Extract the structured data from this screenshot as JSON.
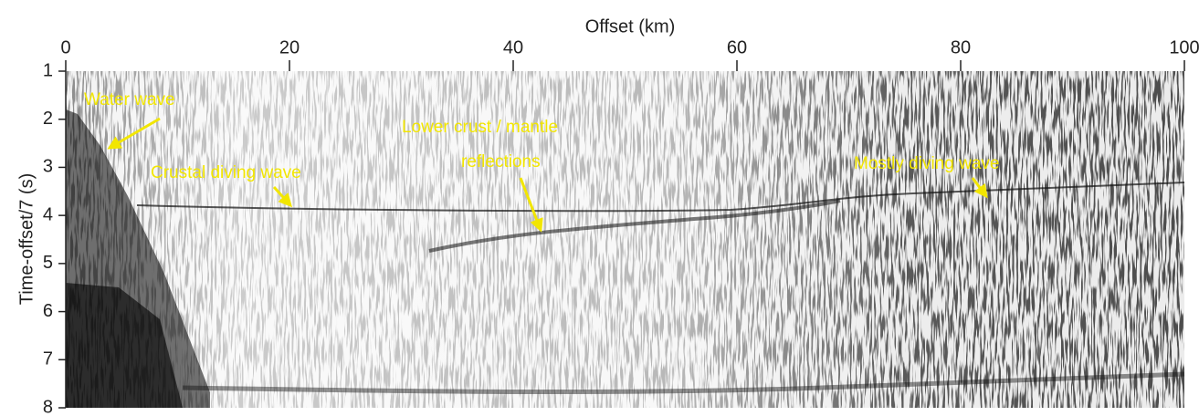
{
  "chart_data": {
    "type": "seismic-section",
    "xlabel": "Offset (km)",
    "ylabel": "Time-offset/7 (s)",
    "xlim": [
      0,
      100
    ],
    "xticks": [
      0,
      20,
      40,
      60,
      80,
      100
    ],
    "ylim": [
      8,
      1
    ],
    "yticks": [
      1,
      2,
      3,
      4,
      5,
      6,
      7,
      8
    ],
    "annotations": [
      "Water wave",
      "Crustal diving wave",
      "Lower crust / mantle",
      "reflections",
      "Mostly diving wave"
    ],
    "annotation_color": "#f2e600"
  }
}
